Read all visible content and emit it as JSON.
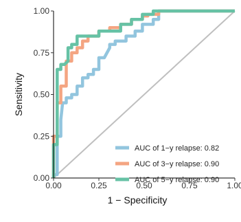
{
  "chart_data": {
    "type": "line",
    "title": "",
    "xlabel": "1 − Specificity",
    "ylabel": "Sensitivity",
    "xlim": [
      0,
      1
    ],
    "ylim": [
      0,
      1
    ],
    "xticks": [
      "0.00",
      "0.25",
      "0.50",
      "0.75",
      "1.00"
    ],
    "yticks": [
      "0.00",
      "0.25",
      "0.50",
      "0.75",
      "1.00"
    ],
    "grid": false,
    "legend_position": "bottom-right",
    "reference_line": {
      "x": [
        0,
        1
      ],
      "y": [
        0,
        1
      ],
      "color": "#bfbfbf"
    },
    "series": [
      {
        "name": "AUC of 1−y relapse: 0.82",
        "color": "#92c5de",
        "x": [
          0.0,
          0.0,
          0.02,
          0.02,
          0.04,
          0.04,
          0.05,
          0.07,
          0.07,
          0.1,
          0.1,
          0.13,
          0.13,
          0.16,
          0.16,
          0.19,
          0.19,
          0.22,
          0.22,
          0.25,
          0.25,
          0.28,
          0.31,
          0.31,
          0.34,
          0.34,
          0.4,
          0.4,
          0.45,
          0.45,
          0.49,
          0.49,
          0.52,
          0.55,
          0.55,
          0.58,
          0.58,
          0.6,
          1.0
        ],
        "y": [
          0.0,
          0.02,
          0.02,
          0.25,
          0.25,
          0.35,
          0.45,
          0.45,
          0.48,
          0.48,
          0.5,
          0.5,
          0.55,
          0.55,
          0.6,
          0.6,
          0.62,
          0.62,
          0.65,
          0.65,
          0.72,
          0.72,
          0.78,
          0.8,
          0.8,
          0.82,
          0.82,
          0.85,
          0.85,
          0.88,
          0.88,
          0.92,
          0.92,
          0.92,
          0.95,
          0.95,
          1.0,
          1.0,
          1.0
        ]
      },
      {
        "name": "AUC of 3−y relapse: 0.90",
        "color": "#f4a582",
        "x": [
          0.0,
          0.0,
          0.02,
          0.02,
          0.04,
          0.04,
          0.07,
          0.07,
          0.1,
          0.1,
          0.13,
          0.13,
          0.16,
          0.16,
          0.19,
          0.19,
          0.25,
          0.25,
          0.31,
          0.31,
          0.37,
          0.37,
          0.43,
          0.43,
          0.49,
          0.49,
          0.52,
          0.52,
          0.58,
          0.58,
          1.0
        ],
        "y": [
          0.0,
          0.25,
          0.25,
          0.45,
          0.45,
          0.55,
          0.55,
          0.7,
          0.7,
          0.75,
          0.75,
          0.78,
          0.78,
          0.82,
          0.82,
          0.85,
          0.85,
          0.88,
          0.88,
          0.9,
          0.9,
          0.92,
          0.92,
          0.95,
          0.95,
          0.97,
          0.97,
          0.98,
          0.98,
          1.0,
          1.0
        ]
      },
      {
        "name": "AUC of 5−y relapse: 0.90",
        "color": "#66c2a5",
        "x": [
          0.0,
          0.0,
          0.02,
          0.02,
          0.04,
          0.04,
          0.06,
          0.08,
          0.08,
          0.1,
          0.1,
          0.13,
          0.13,
          0.25,
          0.25,
          0.37,
          0.37,
          0.43,
          0.43,
          0.49,
          0.49,
          0.55,
          0.55,
          1.0
        ],
        "y": [
          0.0,
          0.2,
          0.2,
          0.65,
          0.65,
          0.68,
          0.68,
          0.7,
          0.78,
          0.78,
          0.8,
          0.8,
          0.85,
          0.85,
          0.88,
          0.88,
          0.92,
          0.92,
          0.95,
          0.95,
          0.98,
          0.98,
          1.0,
          1.0
        ]
      }
    ]
  }
}
